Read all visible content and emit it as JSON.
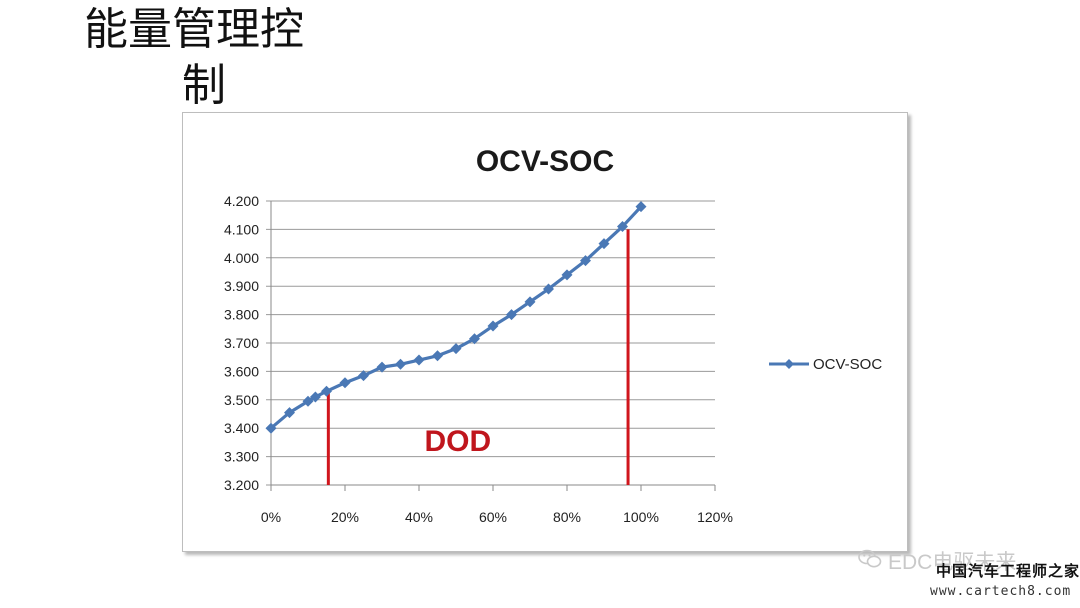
{
  "slide": {
    "title_line1": "能量管理控",
    "title_line2": "制"
  },
  "watermark": {
    "account": "EDC电驱未来",
    "site_name": "中国汽车工程师之家",
    "url": "www.cartech8.com"
  },
  "chart_data": {
    "type": "line",
    "title": "OCV-SOC",
    "xlabel": "",
    "ylabel": "",
    "x_ticks": [
      "0%",
      "20%",
      "40%",
      "60%",
      "80%",
      "100%",
      "120%"
    ],
    "y_ticks": [
      "4.200",
      "4.100",
      "4.000",
      "3.900",
      "3.800",
      "3.700",
      "3.600",
      "3.500",
      "3.400",
      "3.300",
      "3.200"
    ],
    "xlim": [
      0,
      1.2
    ],
    "ylim": [
      3.2,
      4.2
    ],
    "grid": "horizontal",
    "legend": "right",
    "series": [
      {
        "name": "OCV-SOC",
        "color": "#4a78b5",
        "marker": "diamond",
        "x": [
          0,
          0.05,
          0.1,
          0.12,
          0.15,
          0.2,
          0.25,
          0.3,
          0.35,
          0.4,
          0.45,
          0.5,
          0.55,
          0.6,
          0.65,
          0.7,
          0.75,
          0.8,
          0.85,
          0.9,
          0.95,
          1.0
        ],
        "y": [
          3.4,
          3.455,
          3.495,
          3.51,
          3.53,
          3.56,
          3.585,
          3.615,
          3.625,
          3.64,
          3.655,
          3.68,
          3.715,
          3.76,
          3.8,
          3.845,
          3.89,
          3.94,
          3.99,
          4.05,
          4.11,
          4.18
        ]
      }
    ],
    "annotations": [
      {
        "type": "vline",
        "x": 0.155,
        "color": "#d0161d"
      },
      {
        "type": "vline",
        "x": 0.965,
        "color": "#d0161d"
      },
      {
        "type": "text",
        "text": "DOD",
        "color": "#c0161d"
      }
    ]
  }
}
